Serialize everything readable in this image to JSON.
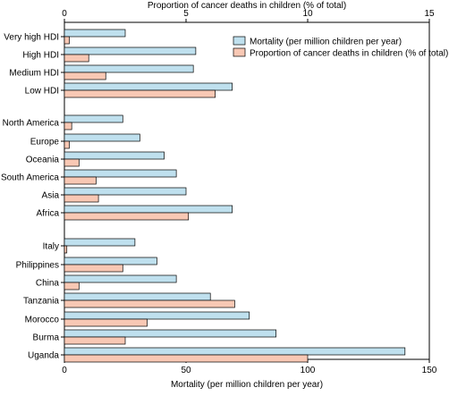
{
  "chart_data": {
    "type": "bar",
    "orientation": "horizontal",
    "top_axis": {
      "label": "Proportion of cancer deaths in children (% of total)",
      "range": [
        0,
        15
      ],
      "ticks": [
        "0",
        "5",
        "10",
        "15"
      ]
    },
    "bottom_axis": {
      "label": "Mortality (per million children per year)",
      "range": [
        0,
        150
      ],
      "ticks": [
        "0",
        "50",
        "100",
        "150"
      ]
    },
    "legend": {
      "placement": "top-right",
      "entries": [
        {
          "name": "Mortality (per million children per year)",
          "color": "#bfe0ee"
        },
        {
          "name": "Proportion of cancer deaths in children (% of total)",
          "color": "#f8c8b4"
        }
      ]
    },
    "groups": [
      {
        "categories": [
          "Very high HDI",
          "High HDI",
          "Medium HDI",
          "Low HDI"
        ]
      },
      {
        "categories": [
          "North America",
          "Europe",
          "Oceania",
          "South America",
          "Asia",
          "Africa"
        ]
      },
      {
        "categories": [
          "Italy",
          "Philippines",
          "China",
          "Tanzania",
          "Morocco",
          "Burma",
          "Uganda"
        ]
      }
    ],
    "series": [
      {
        "name": "Mortality (per million children per year)",
        "axis": "bottom",
        "color": "#bfe0ee",
        "values": [
          25,
          54,
          53,
          69,
          24,
          31,
          41,
          46,
          50,
          69,
          29,
          38,
          46,
          60,
          76,
          87,
          140
        ]
      },
      {
        "name": "Proportion of cancer deaths in children (% of total)",
        "axis": "top",
        "color": "#f8c8b4",
        "values": [
          0.2,
          1.0,
          1.7,
          6.2,
          0.3,
          0.2,
          0.6,
          1.3,
          1.4,
          5.1,
          0.1,
          2.4,
          0.6,
          7.0,
          3.4,
          2.5,
          10.0
        ]
      }
    ]
  }
}
